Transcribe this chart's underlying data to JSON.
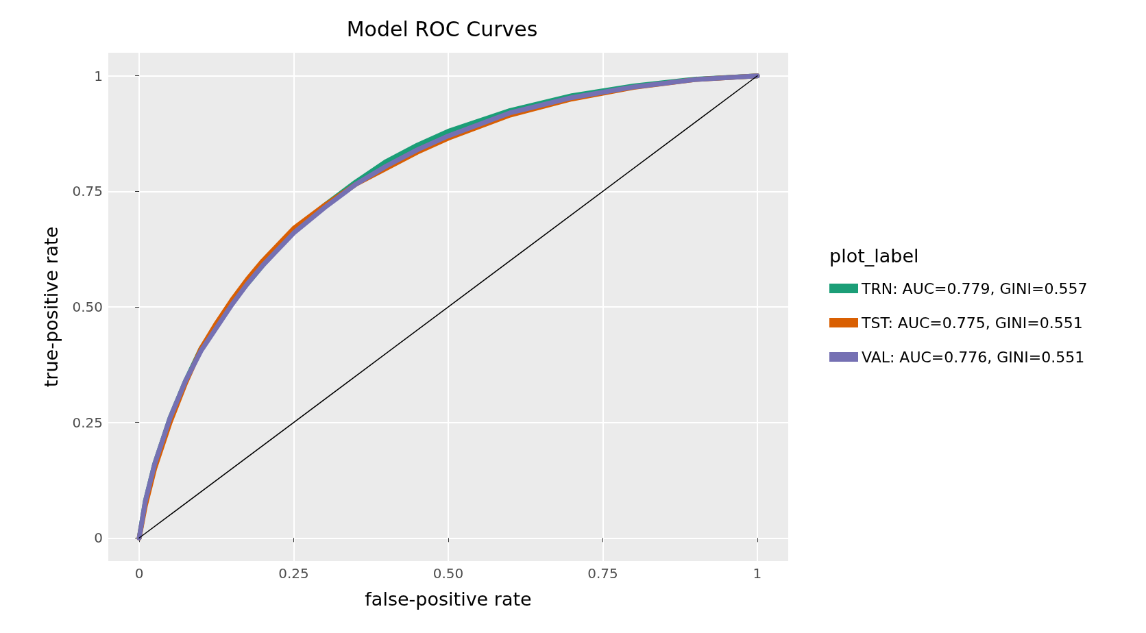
{
  "chart_data": {
    "type": "line",
    "title": "Model ROC Curves",
    "xlabel": "false-positive rate",
    "ylabel": "true-positive rate",
    "legend_title": "plot_label",
    "x": [
      0,
      0.01,
      0.025,
      0.05,
      0.075,
      0.1,
      0.125,
      0.15,
      0.175,
      0.2,
      0.25,
      0.3,
      0.35,
      0.4,
      0.45,
      0.5,
      0.6,
      0.7,
      0.8,
      0.9,
      1
    ],
    "series": [
      {
        "name": "TRN: AUC=0.779, GINI=0.557",
        "color": "#1b9e77",
        "values": [
          0,
          0.08,
          0.16,
          0.26,
          0.34,
          0.41,
          0.46,
          0.51,
          0.55,
          0.59,
          0.665,
          0.72,
          0.77,
          0.815,
          0.85,
          0.88,
          0.925,
          0.957,
          0.978,
          0.993,
          1
        ]
      },
      {
        "name": "TST: AUC=0.775, GINI=0.551",
        "color": "#d95f02",
        "values": [
          0,
          0.07,
          0.15,
          0.25,
          0.335,
          0.41,
          0.465,
          0.515,
          0.56,
          0.6,
          0.67,
          0.72,
          0.765,
          0.8,
          0.835,
          0.865,
          0.915,
          0.95,
          0.975,
          0.992,
          1
        ]
      },
      {
        "name": "VAL: AUC=0.776, GINI=0.551",
        "color": "#7570b3",
        "values": [
          0,
          0.08,
          0.16,
          0.26,
          0.34,
          0.405,
          0.455,
          0.505,
          0.55,
          0.59,
          0.66,
          0.715,
          0.765,
          0.805,
          0.84,
          0.87,
          0.92,
          0.953,
          0.976,
          0.992,
          1
        ]
      },
      {
        "color": "#000000",
        "x": [
          0,
          1
        ],
        "values": [
          0,
          1
        ]
      }
    ],
    "xlim": [
      -0.05,
      1.05
    ],
    "ylim": [
      -0.05,
      1.05
    ],
    "xticks": [
      0,
      0.25,
      {
        "value": 0.5,
        "label": "0.50"
      },
      0.75,
      1
    ],
    "yticks": [
      0,
      0.25,
      {
        "value": 0.5,
        "label": "0.50"
      },
      0.75,
      1
    ],
    "grid": true,
    "legend": "right",
    "marker": "none",
    "line_style": "solid"
  }
}
